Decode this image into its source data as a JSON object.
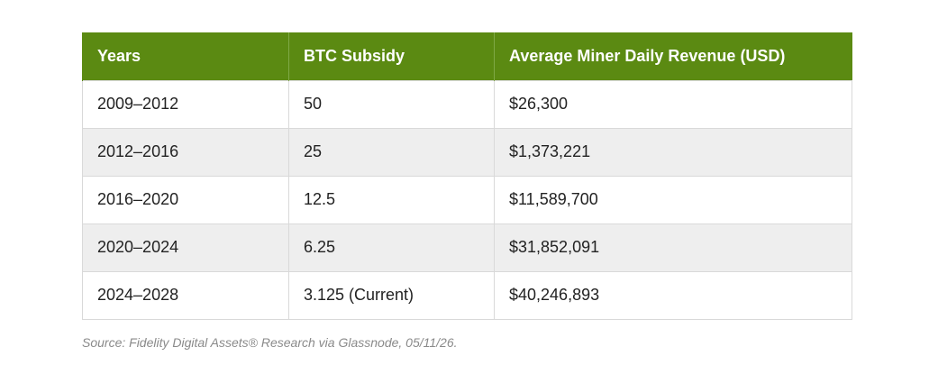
{
  "table": {
    "headers": [
      "Years",
      "BTC Subsidy",
      "Average Miner Daily Revenue (USD)"
    ],
    "rows": [
      [
        "2009–2012",
        "50",
        "$26,300"
      ],
      [
        "2012–2016",
        "25",
        "$1,373,221"
      ],
      [
        "2016–2020",
        "12.5",
        "$11,589,700"
      ],
      [
        "2020–2024",
        "6.25",
        "$31,852,091"
      ],
      [
        "2024–2028",
        "3.125 (Current)",
        "$40,246,893"
      ]
    ]
  },
  "source": "Source: Fidelity Digital Assets® Research via Glassnode, 05/11/26.",
  "colors": {
    "header_bg": "#5b8a12",
    "header_text": "#ffffff",
    "stripe": "#eeeeee",
    "border": "#d9d9d9",
    "source_text": "#8a8a8a"
  }
}
